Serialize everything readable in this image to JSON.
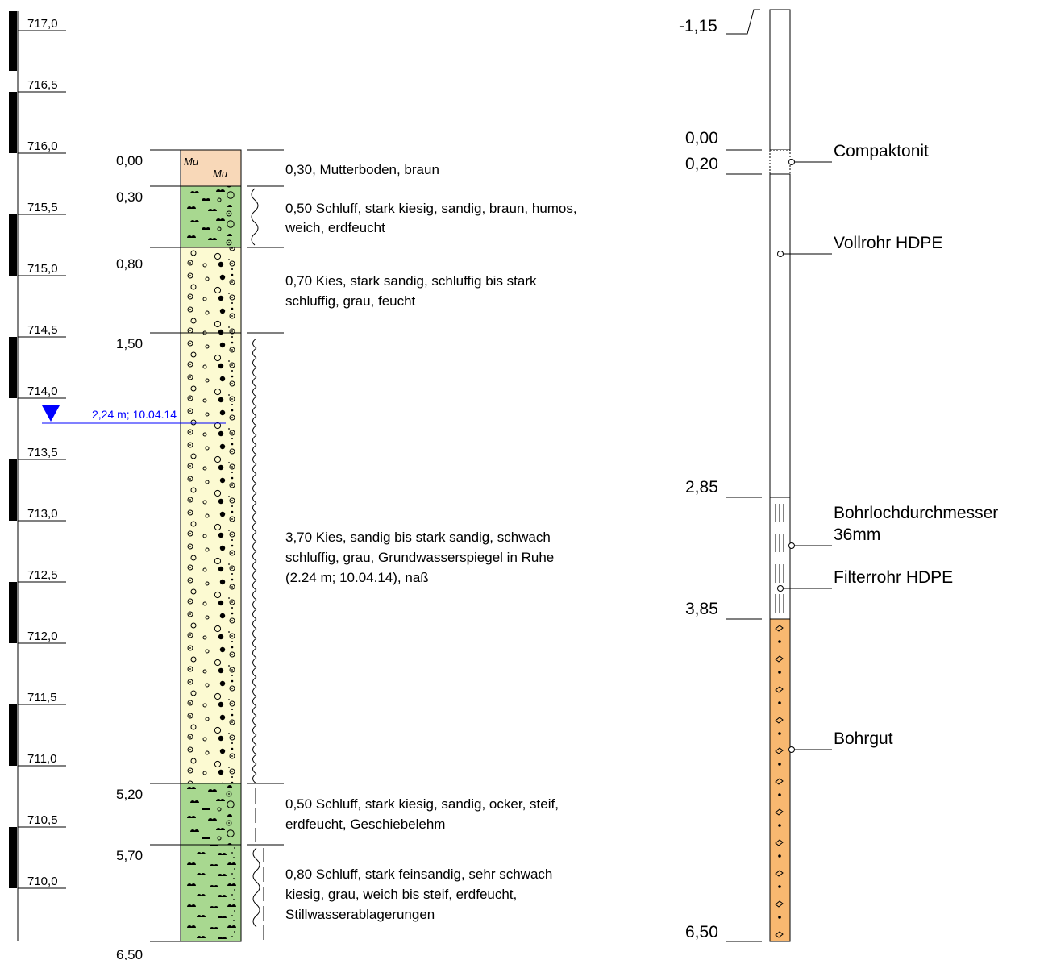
{
  "elevation_scale": {
    "labels": [
      "717,0",
      "716,5",
      "716,0",
      "715,5",
      "715,0",
      "714,5",
      "714,0",
      "713,5",
      "713,0",
      "712,5",
      "712,0",
      "711,5",
      "711,0",
      "710,5",
      "710,0"
    ]
  },
  "strata": [
    {
      "top": "0,00",
      "description": "0,30, Mutterboden, braun",
      "symbol": "Mu",
      "fill": "#f8d8b8",
      "pattern": "mutterboden"
    },
    {
      "top": "0,30",
      "description_lines": [
        "0,50 Schluff, stark kiesig, sandig, braun, humos,",
        "weich, erdfeucht"
      ],
      "fill": "#a8d890",
      "pattern": "schluff-kiesig"
    },
    {
      "top": "0,80",
      "description_lines": [
        "0,70 Kies, stark sandig, schluffig bis stark",
        "schluffig, grau, feucht"
      ],
      "fill": "#fcfad2",
      "pattern": "kies"
    },
    {
      "top": "1,50",
      "description_lines": [
        "3,70 Kies, sandig bis stark sandig, schwach",
        "schluffig, grau, Grundwasserspiegel in Ruhe",
        "(2.24 m; 10.04.14), naß"
      ],
      "fill": "#fcfad2",
      "pattern": "kies"
    },
    {
      "top": "5,20",
      "description_lines": [
        "0,50 Schluff, stark kiesig, sandig, ocker, steif,",
        "erdfeucht, Geschiebelehm"
      ],
      "fill": "#a8d890",
      "pattern": "schluff-kiesig"
    },
    {
      "top": "5,70",
      "description_lines": [
        "0,80 Schluff, stark feinsandig, sehr schwach",
        "kiesig, grau, weich bis steif, erdfeucht,",
        "Stillwasserablagerungen"
      ],
      "fill": "#a8d890",
      "pattern": "schluff-sandig"
    }
  ],
  "final_depth": "6,50",
  "groundwater": {
    "label": "2,24 m; 10.04.14",
    "depth_m": 2.24,
    "color": "#0000ff"
  },
  "well": {
    "depth_labels": [
      "-1,15",
      "0,00",
      "0,20",
      "2,85",
      "3,85",
      "6,50"
    ],
    "components": {
      "compaktonit": "Compaktonit",
      "vollrohr": "Vollrohr HDPE",
      "bohrloch_line1": "Bohrlochdurchmesser",
      "bohrloch_line2": "36mm",
      "filterrohr": "Filterrohr HDPE",
      "bohrgut": "Bohrgut"
    },
    "bohrgut_fill": "#f8b870"
  }
}
